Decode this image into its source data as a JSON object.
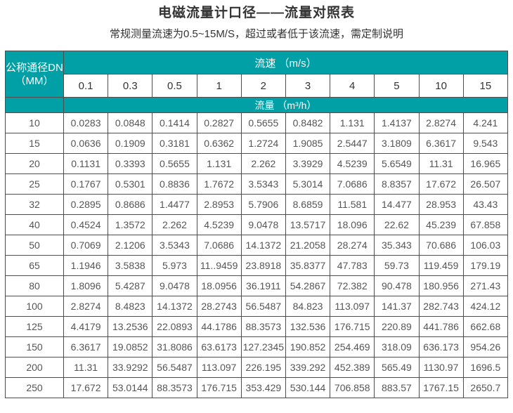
{
  "page": {
    "title": "电磁流量计口径——流量对照表",
    "subtitle": "常规测量流速为0.5~15M/S，超过或者低于该流速，需定制说明"
  },
  "colors": {
    "teal": "#00a0a6",
    "border": "#4d4d4d",
    "title_text": "#333333",
    "data_text": "#555555",
    "header_text": "#ffffff",
    "background": "#ffffff"
  },
  "table": {
    "corner_header_line1": "公称通径DN",
    "corner_header_line2": "（MM）",
    "velocity_header": "流速 （m/s）",
    "flow_header": "流量 （m³/h）",
    "velocity_values": [
      "0.1",
      "0.3",
      "0.5",
      "1",
      "2",
      "3",
      "4",
      "5",
      "10",
      "15"
    ],
    "rows": [
      {
        "dn": "10",
        "values": [
          "0.0283",
          "0.0848",
          "0.1414",
          "0.2827",
          "0.5655",
          "0.8482",
          "1.131",
          "1.4137",
          "2.8274",
          "4.241"
        ]
      },
      {
        "dn": "15",
        "values": [
          "0.0636",
          "0.1909",
          "0.3181",
          "0.6362",
          "1.2724",
          "1.9085",
          "2.5447",
          "3.1809",
          "6.3617",
          "9.543"
        ]
      },
      {
        "dn": "20",
        "values": [
          "0.1131",
          "0.3393",
          "0.5655",
          "1.131",
          "2.262",
          "3.3929",
          "4.5239",
          "5.6549",
          "11.31",
          "16.965"
        ]
      },
      {
        "dn": "25",
        "values": [
          "0.1767",
          "0.5301",
          "0.8836",
          "1.7672",
          "3.5343",
          "5.3014",
          "7.0686",
          "8.8357",
          "17.672",
          "26.507"
        ]
      },
      {
        "dn": "32",
        "values": [
          "0.2895",
          "0.8686",
          "1.4477",
          "2.8953",
          "5.7906",
          "8.6859",
          "11.581",
          "14.477",
          "28.953",
          "43.43"
        ]
      },
      {
        "dn": "40",
        "values": [
          "0.4524",
          "1.3572",
          "2.262",
          "4.5239",
          "9.0478",
          "13.5717",
          "18.096",
          "22.62",
          "45.239",
          "67.858"
        ]
      },
      {
        "dn": "50",
        "values": [
          "0.7069",
          "2.1206",
          "3.5343",
          "7.0686",
          "14.1372",
          "21.2058",
          "28.274",
          "35.343",
          "70.686",
          "106.03"
        ]
      },
      {
        "dn": "65",
        "values": [
          "1.1946",
          "3.5838",
          "5.973",
          "11..9459",
          "23.8918",
          "35.8377",
          "47.783",
          "59.73",
          "119.459",
          "179.19"
        ]
      },
      {
        "dn": "80",
        "values": [
          "1.8096",
          "5.4287",
          "9.0478",
          "18.0956",
          "36.1911",
          "54.2867",
          "72.382",
          "90.478",
          "180.956",
          "271.43"
        ]
      },
      {
        "dn": "100",
        "values": [
          "2.8274",
          "8.4823",
          "14.1372",
          "28.2743",
          "56.5487",
          "84.823",
          "113.097",
          "141.37",
          "282.743",
          "424.12"
        ]
      },
      {
        "dn": "125",
        "values": [
          "4.4179",
          "13.2536",
          "22.0893",
          "44.1786",
          "88.3573",
          "132.536",
          "176.715",
          "220.89",
          "441.786",
          "662.68"
        ]
      },
      {
        "dn": "150",
        "values": [
          "6.3617",
          "19.0852",
          "31.8086",
          "63.6173",
          "127.2345",
          "190.852",
          "254.469",
          "318.09",
          "636.173",
          "954.26"
        ]
      },
      {
        "dn": "200",
        "values": [
          "11.31",
          "33.9292",
          "56.5487",
          "113.097",
          "226.195",
          "339.292",
          "452.389",
          "565.49",
          "1130.97",
          "1696.5"
        ]
      },
      {
        "dn": "250",
        "values": [
          "17.672",
          "53.0144",
          "88.3573",
          "176.715",
          "353.429",
          "530.144",
          "706.858",
          "883.57",
          "1767.15",
          "2650.7"
        ]
      }
    ]
  }
}
